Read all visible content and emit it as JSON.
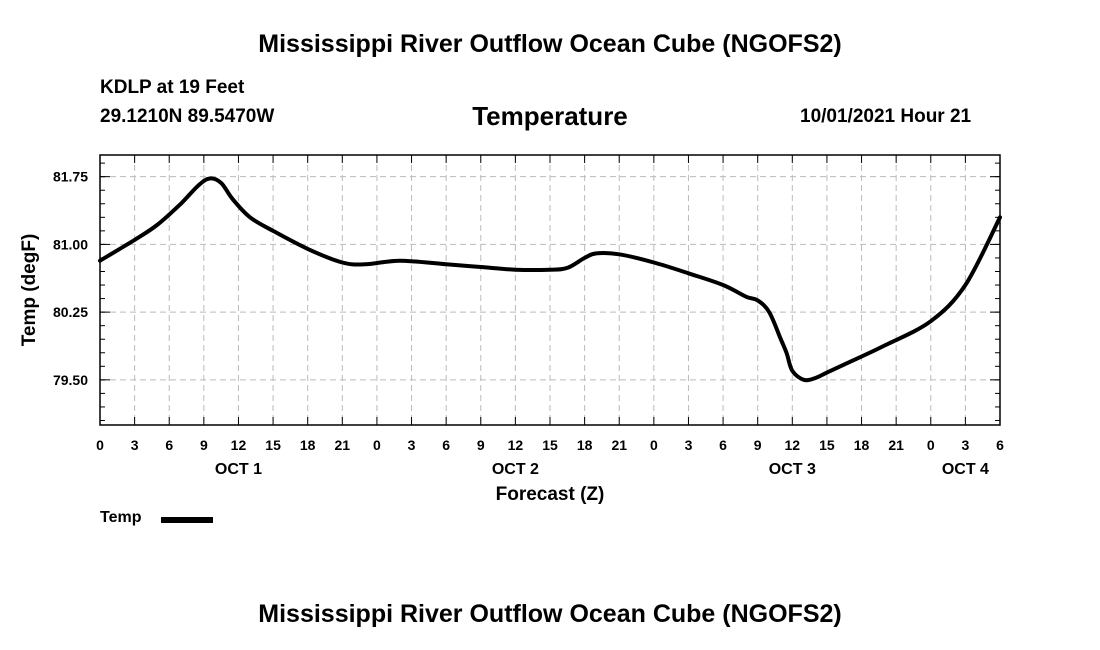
{
  "header": {
    "title": "Mississippi River Outflow Ocean Cube (NGOFS2)",
    "station": "KDLP at 19 Feet",
    "coords": "29.1210N  89.5470W",
    "variable": "Temperature",
    "run_time": "10/01/2021 Hour 21"
  },
  "footer": {
    "title": "Mississippi River Outflow Ocean Cube (NGOFS2)"
  },
  "legend": {
    "label": "Temp"
  },
  "colors": {
    "line": "#000000",
    "grid": "#bbbbbb",
    "background": "#ffffff"
  },
  "chart_data": {
    "type": "line",
    "title": "Temperature",
    "xlabel": "Forecast (Z)",
    "ylabel": "Temp (degF)",
    "x_unit": "hours since 2021-10-01 00Z",
    "xlim": [
      0,
      78
    ],
    "ylim": [
      79.0,
      81.99
    ],
    "yticks": [
      79.5,
      80.25,
      81.0,
      81.75
    ],
    "ytick_labels": [
      "79.50",
      "80.25",
      "81.00",
      "81.75"
    ],
    "xticks": [
      0,
      3,
      6,
      9,
      12,
      15,
      18,
      21,
      24,
      27,
      30,
      33,
      36,
      39,
      42,
      45,
      48,
      51,
      54,
      57,
      60,
      63,
      66,
      69,
      72,
      75,
      78
    ],
    "xtick_labels": [
      "0",
      "3",
      "6",
      "9",
      "12",
      "15",
      "18",
      "21",
      "0",
      "3",
      "6",
      "9",
      "12",
      "15",
      "18",
      "21",
      "0",
      "3",
      "6",
      "9",
      "12",
      "15",
      "18",
      "21",
      "0",
      "3",
      "6"
    ],
    "day_labels": [
      {
        "x": 12,
        "label": "OCT 1"
      },
      {
        "x": 36,
        "label": "OCT 2"
      },
      {
        "x": 60,
        "label": "OCT 3"
      },
      {
        "x": 75,
        "label": "OCT 4"
      }
    ],
    "grid": true,
    "legend_position": "bottom-left",
    "series": [
      {
        "name": "Temp",
        "x": [
          0,
          3,
          5,
          7,
          8.5,
          9.5,
          10.5,
          11.5,
          13,
          15,
          18,
          21,
          23,
          26,
          30,
          33,
          36,
          39,
          40.5,
          42,
          43,
          45,
          48,
          51,
          54,
          56,
          57,
          58,
          59,
          59.5,
          60,
          61,
          62,
          63,
          65,
          68,
          72,
          75,
          78
        ],
        "y": [
          80.82,
          81.05,
          81.22,
          81.45,
          81.65,
          81.73,
          81.68,
          81.5,
          81.3,
          81.15,
          80.95,
          80.8,
          80.78,
          80.82,
          80.78,
          80.75,
          80.72,
          80.72,
          80.74,
          80.85,
          80.9,
          80.89,
          80.8,
          80.68,
          80.55,
          80.42,
          80.38,
          80.25,
          79.95,
          79.8,
          79.6,
          79.5,
          79.52,
          79.58,
          79.7,
          79.88,
          80.15,
          80.55,
          81.3
        ]
      }
    ]
  }
}
